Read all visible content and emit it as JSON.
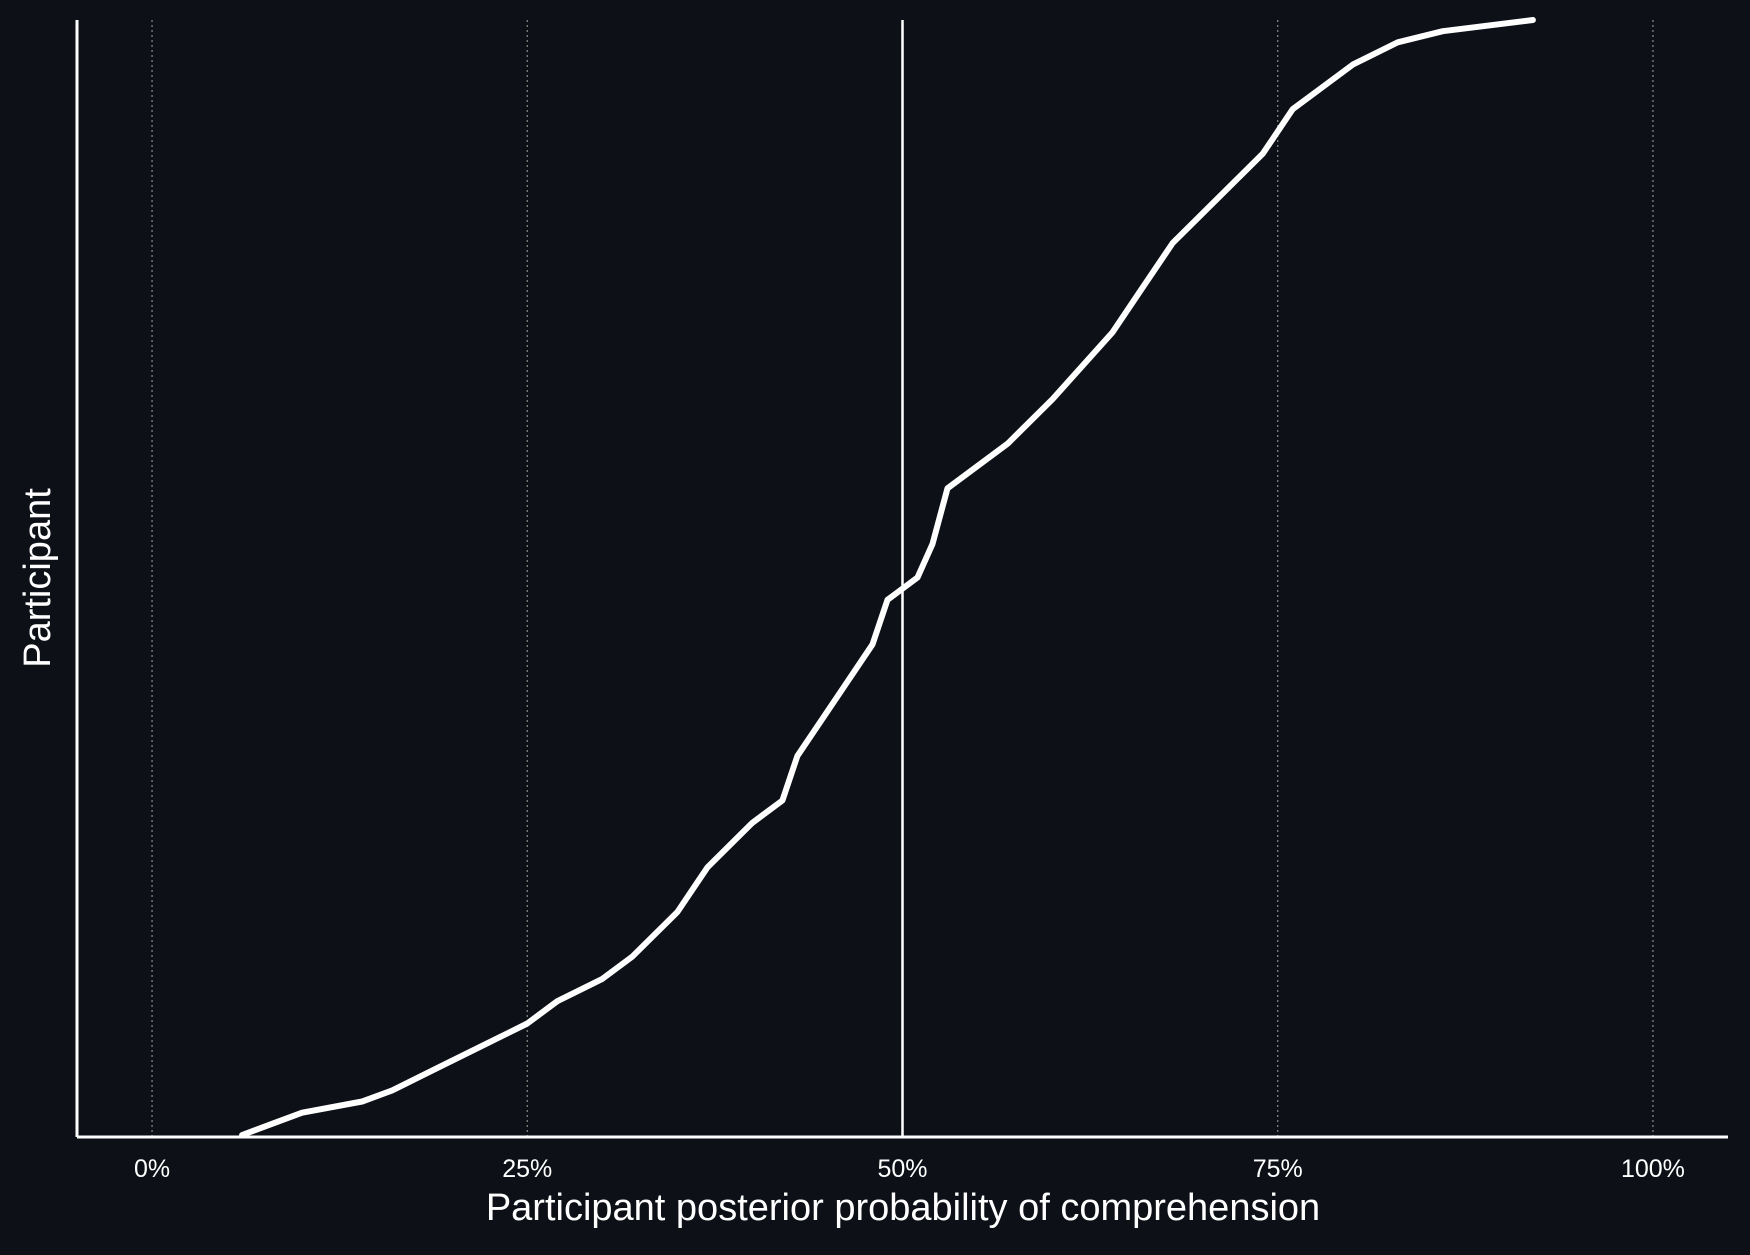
{
  "chart_data": {
    "type": "line",
    "xlabel": "Participant posterior probability of comprehension",
    "ylabel": "Participant",
    "xlim": [
      -0.05,
      1.05
    ],
    "x_ticks": [
      {
        "value": 0.0,
        "label": "0%"
      },
      {
        "value": 0.25,
        "label": "25%"
      },
      {
        "value": 0.5,
        "label": "50%"
      },
      {
        "value": 0.75,
        "label": "75%"
      },
      {
        "value": 1.0,
        "label": "100%"
      }
    ],
    "reference_line": 0.5,
    "grid": "vertical dotted at ticks",
    "y_ticks_shown": false,
    "series": [
      {
        "sorted_participant_fraction": [
          0.0,
          0.01,
          0.02,
          0.03,
          0.04,
          0.06,
          0.08,
          0.1,
          0.12,
          0.14,
          0.16,
          0.2,
          0.24,
          0.28,
          0.3,
          0.34,
          0.4,
          0.44,
          0.48,
          0.5,
          0.53,
          0.58,
          0.62,
          0.66,
          0.72,
          0.76,
          0.8,
          0.84,
          0.88,
          0.92,
          0.94,
          0.96,
          0.98,
          0.99,
          1.0
        ],
        "probability": [
          0.06,
          0.08,
          0.1,
          0.14,
          0.16,
          0.19,
          0.22,
          0.25,
          0.27,
          0.3,
          0.32,
          0.35,
          0.37,
          0.4,
          0.42,
          0.43,
          0.46,
          0.48,
          0.49,
          0.51,
          0.52,
          0.53,
          0.57,
          0.6,
          0.64,
          0.66,
          0.68,
          0.71,
          0.74,
          0.76,
          0.78,
          0.8,
          0.83,
          0.86,
          0.92
        ]
      }
    ]
  },
  "colors": {
    "background": "#0d1117",
    "foreground": "#ffffff"
  }
}
